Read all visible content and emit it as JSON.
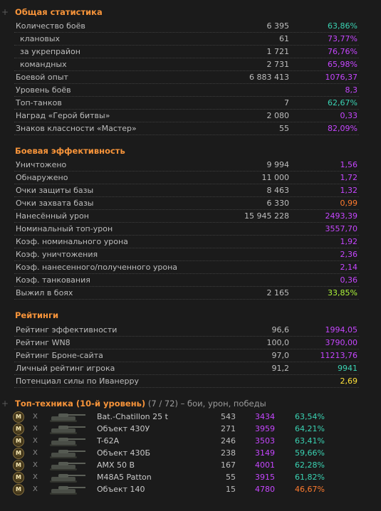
{
  "colors": {
    "teal": "#3ad3b3",
    "purple": "#c646ff",
    "green": "#6bd13a",
    "lime": "#aef73a",
    "orange": "#ff7b2e",
    "yellow": "#ffe23a",
    "section": "#f7943a"
  },
  "general": {
    "title": "Общая статистика",
    "rows": [
      {
        "label": "Количество боёв",
        "value": "6 395",
        "pct": "63,86%",
        "color": "teal",
        "indent": false
      },
      {
        "label": "клановых",
        "value": "61",
        "pct": "73,77%",
        "color": "purple",
        "indent": true
      },
      {
        "label": "за укрепрайон",
        "value": "1 721",
        "pct": "76,76%",
        "color": "purple",
        "indent": true
      },
      {
        "label": "командных",
        "value": "2 731",
        "pct": "65,98%",
        "color": "purple",
        "indent": true
      },
      {
        "label": "Боевой опыт",
        "value": "6 883 413",
        "pct": "1076,37",
        "color": "purple",
        "indent": false
      },
      {
        "label": "Уровень боёв",
        "value": "",
        "pct": "8,3",
        "color": "purple",
        "indent": false
      },
      {
        "label": "Топ-танков",
        "value": "7",
        "pct": "62,67%",
        "color": "teal",
        "indent": false
      },
      {
        "label": "Наград «Герой битвы»",
        "value": "2 080",
        "pct": "0,33",
        "color": "purple",
        "indent": false
      },
      {
        "label": "Знаков классности «Мастер»",
        "value": "55",
        "pct": "82,09%",
        "color": "purple",
        "indent": false
      }
    ]
  },
  "battle": {
    "title": "Боевая эффективность",
    "rows": [
      {
        "label": "Уничтожено",
        "value": "9 994",
        "pct": "1,56",
        "color": "purple"
      },
      {
        "label": "Обнаружено",
        "value": "11 000",
        "pct": "1,72",
        "color": "purple"
      },
      {
        "label": "Очки защиты базы",
        "value": "8 463",
        "pct": "1,32",
        "color": "purple"
      },
      {
        "label": "Очки захвата базы",
        "value": "6 330",
        "pct": "0,99",
        "color": "orange"
      },
      {
        "label": "Нанесённый урон",
        "value": "15 945 228",
        "pct": "2493,39",
        "color": "purple"
      },
      {
        "label": "Номинальный топ-урон",
        "value": "",
        "pct": "3557,70",
        "color": "purple"
      },
      {
        "label": "Коэф. номинального урона",
        "value": "",
        "pct": "1,92",
        "color": "purple"
      },
      {
        "label": "Коэф. уничтожения",
        "value": "",
        "pct": "2,36",
        "color": "purple"
      },
      {
        "label": "Коэф. нанесенного/полученного урона",
        "value": "",
        "pct": "2,14",
        "color": "purple"
      },
      {
        "label": "Коэф. танкования",
        "value": "",
        "pct": "0,36",
        "color": "purple"
      },
      {
        "label": "Выжил в боях",
        "value": "2 165",
        "pct": "33,85%",
        "color": "lime"
      }
    ]
  },
  "ratings": {
    "title": "Рейтинги",
    "rows": [
      {
        "label": "Рейтинг эффективности",
        "value": "96,6",
        "pct": "1994,05",
        "color": "purple"
      },
      {
        "label": "Рейтинг WN8",
        "value": "100,0",
        "pct": "3790,00",
        "color": "purple"
      },
      {
        "label": "Рейтинг Броне-сайта",
        "value": "97,0",
        "pct": "11213,76",
        "color": "purple"
      },
      {
        "label": "Личный рейтинг игрока",
        "value": "91,2",
        "pct": "9941",
        "color": "teal"
      },
      {
        "label": "Потенциал силы по Иванерру",
        "value": "",
        "pct": "2,69",
        "color": "yellow"
      }
    ]
  },
  "tech": {
    "title": "Топ-техника (10-й уровень)",
    "count": "(7 / 72)",
    "subtitle": "– бои, урон, победы",
    "medal_label": "M",
    "x_label": "X",
    "rows": [
      {
        "name": "Bat.-Chatillon 25 t",
        "battles": "543",
        "damage": "3434",
        "win": "63,54%",
        "color": "teal"
      },
      {
        "name": "Объект 430У",
        "battles": "271",
        "damage": "3959",
        "win": "64,21%",
        "color": "teal"
      },
      {
        "name": "T-62A",
        "battles": "246",
        "damage": "3503",
        "win": "63,41%",
        "color": "teal"
      },
      {
        "name": "Объект 430Б",
        "battles": "238",
        "damage": "3149",
        "win": "59,66%",
        "color": "teal"
      },
      {
        "name": "AMX 50 B",
        "battles": "167",
        "damage": "4001",
        "win": "62,28%",
        "color": "teal"
      },
      {
        "name": "M48A5 Patton",
        "battles": "55",
        "damage": "3915",
        "win": "61,82%",
        "color": "teal"
      },
      {
        "name": "Объект 140",
        "battles": "15",
        "damage": "4780",
        "win": "46,67%",
        "color": "orange"
      }
    ]
  }
}
